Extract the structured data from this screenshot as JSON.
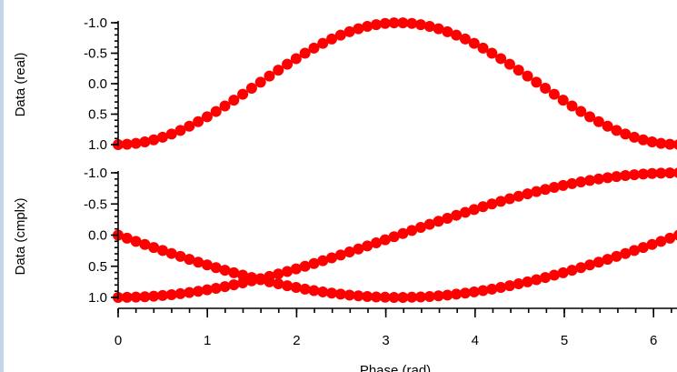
{
  "chart_data": {
    "type": "scatter",
    "x_axis": {
      "label": "Phase (rad)",
      "range": [
        0,
        6.283
      ],
      "ticks": [
        0,
        1,
        2,
        3,
        4,
        5,
        6
      ],
      "tick_labels": [
        "0",
        "1",
        "2",
        "3",
        "4",
        "5",
        "6"
      ]
    },
    "panels": [
      {
        "ylabel": "Data (real)",
        "ylim": [
          -1.0,
          1.0
        ],
        "y_ticks": [
          1.0,
          0.5,
          0.0,
          -0.5,
          -1.0
        ],
        "y_tick_labels": [
          "1.0",
          "0.5",
          "0.0",
          "-0.5",
          "-1.0"
        ],
        "series": [
          {
            "function": "cos",
            "color": "#ff0000"
          }
        ]
      },
      {
        "ylabel": "Data (cmplx)",
        "ylim": [
          -1.0,
          1.0
        ],
        "y_ticks": [
          1.0,
          0.5,
          0.0,
          -0.5,
          -1.0
        ],
        "y_tick_labels": [
          "1.0",
          "0.5",
          "0.0",
          "-0.5",
          "-1.0"
        ],
        "series": [
          {
            "function": "cos(x/2)",
            "color": "#ff0000"
          },
          {
            "function": "sin(x/2)",
            "color": "#ff0000"
          }
        ]
      }
    ],
    "points_per_series": 64,
    "marker": "filled-circle",
    "grid": false,
    "legend": "none"
  }
}
